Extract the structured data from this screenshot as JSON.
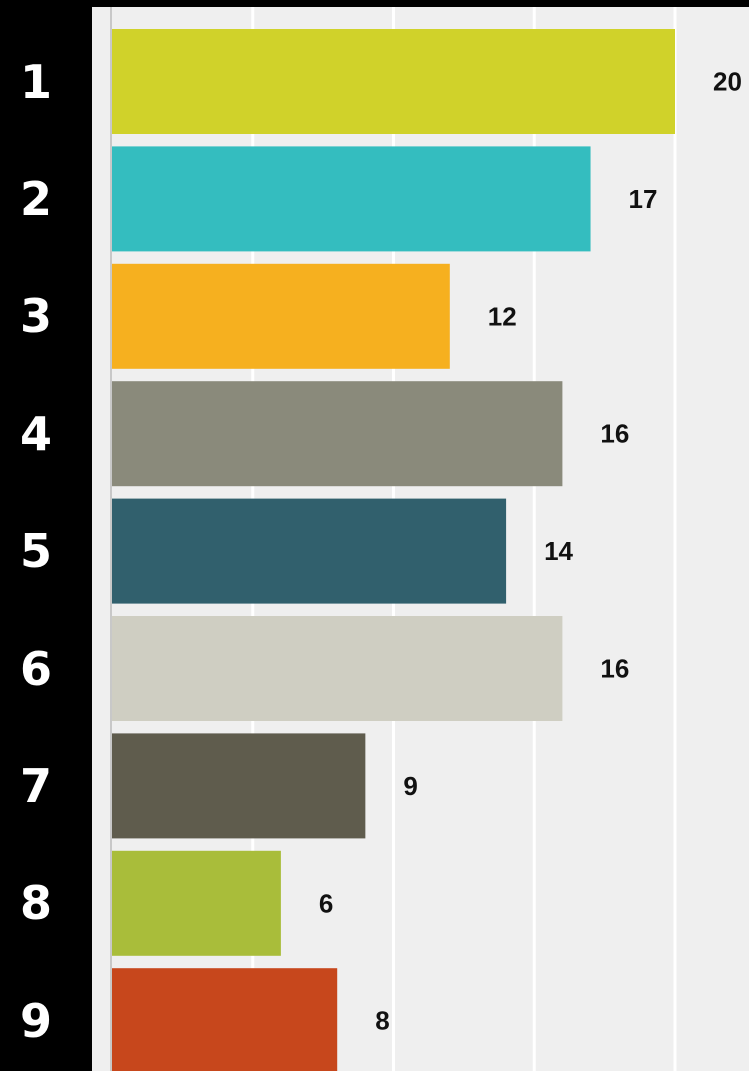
{
  "chart_data": {
    "type": "bar",
    "orientation": "horizontal",
    "categories": [
      "1",
      "2",
      "3",
      "4",
      "5",
      "6",
      "7",
      "8",
      "9"
    ],
    "values": [
      20,
      17,
      12,
      16,
      14,
      16,
      9,
      6,
      8
    ],
    "value_labels": [
      "20",
      "17",
      "12",
      "16",
      "14",
      "16",
      "9",
      "6",
      "8"
    ],
    "colors": [
      "#d0d22a",
      "#34bdbf",
      "#f6b01f",
      "#8a8a7b",
      "#31606d",
      "#cfcec2",
      "#5f5c4d",
      "#a9bd3a",
      "#c7471c"
    ],
    "title": "",
    "xlabel": "",
    "ylabel": "",
    "xlim": [
      0,
      23
    ],
    "grid": true,
    "grid_step": 5,
    "legend": "none"
  }
}
